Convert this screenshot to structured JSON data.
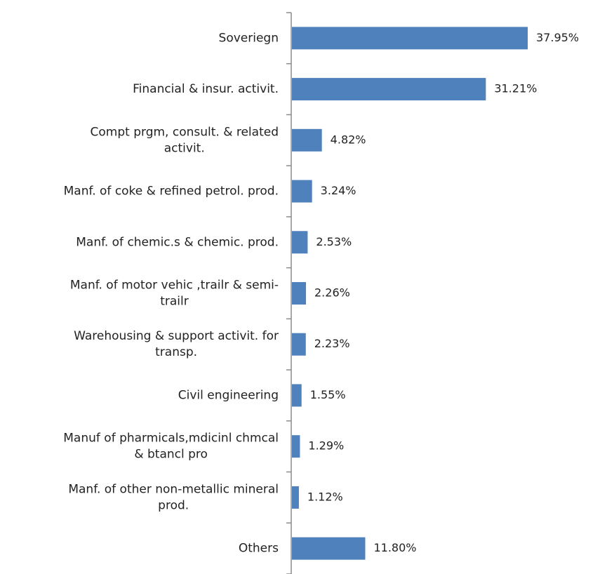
{
  "chart_data": {
    "type": "bar",
    "orientation": "horizontal",
    "categories": [
      "Soveriegn",
      "Financial & insur. activit.",
      "Compt prgm, consult. & related activit.",
      "Manf. of coke & refined petrol. prod.",
      "Manf. of chemic.s & chemic. prod.",
      "Manf. of motor vehic ,trailr & semi-trailr",
      "Warehousing & support activit. for transp.",
      "Civil engineering",
      "Manuf of pharmicals,mdicinl chmcal & btancl pro",
      "Manf. of other non-metallic mineral prod.",
      "Others"
    ],
    "category_lines": [
      [
        "Soveriegn"
      ],
      [
        "Financial & insur. activit."
      ],
      [
        "Compt prgm, consult. & related",
        "activit."
      ],
      [
        "Manf. of coke & refined petrol. prod."
      ],
      [
        "Manf. of chemic.s & chemic. prod."
      ],
      [
        "Manf. of motor vehic ,trailr & semi-",
        "trailr"
      ],
      [
        "Warehousing & support activit. for",
        "transp."
      ],
      [
        "Civil engineering"
      ],
      [
        "Manuf of pharmicals,mdicinl chmcal",
        "& btancl pro"
      ],
      [
        "Manf. of other non-metallic mineral",
        "prod."
      ],
      [
        "Others"
      ]
    ],
    "values": [
      37.95,
      31.21,
      4.82,
      3.24,
      2.53,
      2.26,
      2.23,
      1.55,
      1.29,
      1.12,
      11.8
    ],
    "data_labels": [
      "37.95%",
      "31.21%",
      "4.82%",
      "3.24%",
      "2.53%",
      "2.26%",
      "2.23%",
      "1.55%",
      "1.29%",
      "1.12%",
      "11.80%"
    ],
    "xlim": [
      0,
      40
    ],
    "bar_color": "#4f81bd",
    "axis_color": "#8c8c8c",
    "grid": false,
    "legend": "none"
  }
}
